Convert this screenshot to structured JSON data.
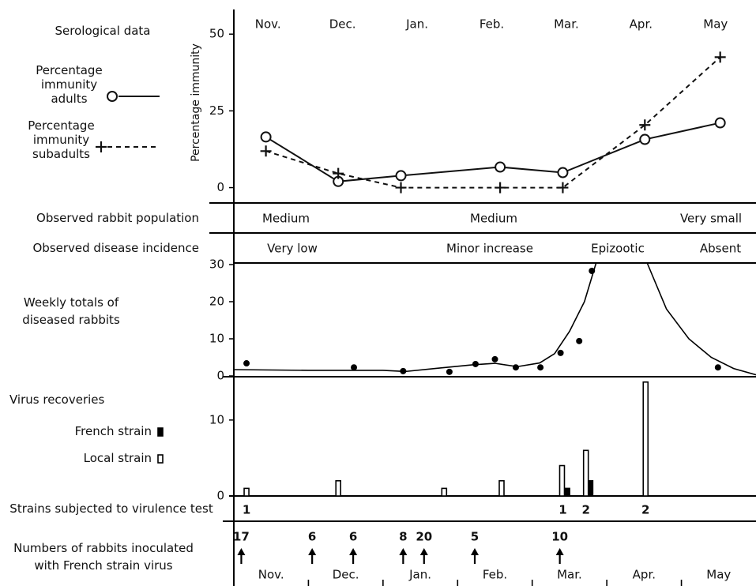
{
  "chart_data": [
    {
      "type": "line",
      "title": "Serological data",
      "ylabel": "Percentage immunity",
      "categories": [
        "Nov.",
        "Dec.",
        "Jan.",
        "Feb.",
        "Mar.",
        "Apr.",
        "May"
      ],
      "x": [
        0.43,
        1.4,
        2.24,
        3.57,
        4.41,
        5.51,
        6.52
      ],
      "xlim": [
        0,
        7
      ],
      "ylim": [
        -5,
        57
      ],
      "yticks": [
        0,
        25,
        50
      ],
      "series": [
        {
          "name": "Percentage immunity adults",
          "marker": "circle",
          "dash": "solid",
          "color": "#111111",
          "values": [
            16.5,
            2,
            3.9,
            6.7,
            4.9,
            15.7,
            21.1
          ]
        },
        {
          "name": "Percentage immunity subadults",
          "marker": "plus",
          "dash": "dashed",
          "color": "#111111",
          "values": [
            11.9,
            4.6,
            0,
            0,
            0,
            20.4,
            42.5
          ]
        }
      ]
    },
    {
      "type": "text_row",
      "title": "Observed rabbit population",
      "labels": [
        "Medium",
        "Medium",
        "Very small"
      ]
    },
    {
      "type": "text_row",
      "title": "Observed disease incidence",
      "labels": [
        "Very low",
        "Minor increase",
        "Epizootic",
        "Absent"
      ]
    },
    {
      "type": "scatter",
      "title": "Weekly totals of diseased rabbits",
      "xlim": [
        0,
        7
      ],
      "x": [
        0.17,
        1.61,
        2.27,
        2.89,
        3.24,
        3.5,
        3.78,
        4.11,
        4.38,
        4.63,
        4.8,
        6.49
      ],
      "values": [
        3.4,
        2.3,
        1.3,
        1.1,
        3.2,
        4.5,
        2.3,
        2.3,
        6.2,
        9.4,
        28.3,
        2.3
      ],
      "curve": {
        "x": [
          0,
          1,
          2,
          2.3,
          2.7,
          3.2,
          3.5,
          3.8,
          4.1,
          4.3,
          4.5,
          4.7,
          4.85,
          4.9,
          5.5,
          5.55,
          5.8,
          6.1,
          6.4,
          6.7,
          7
        ],
        "values": [
          1.7,
          1.5,
          1.5,
          1.2,
          2,
          3,
          3.4,
          2.5,
          3.5,
          6,
          12,
          20,
          30,
          33,
          33,
          30,
          18,
          10,
          5,
          2,
          0.3
        ]
      },
      "ylim": [
        0,
        30
      ],
      "yticks": [
        0,
        10,
        20,
        30
      ]
    },
    {
      "type": "bar",
      "title": "Virus recoveries",
      "xlim": [
        0,
        7
      ],
      "ylim": [
        0,
        15.6
      ],
      "yticks": [
        0,
        10
      ],
      "series": [
        {
          "name": "French strain",
          "fill": "solid",
          "x": [
            4.47,
            4.78
          ],
          "values": [
            1,
            2
          ]
        },
        {
          "name": "Local strain",
          "fill": "open",
          "x": [
            0.17,
            1.4,
            2.82,
            3.59,
            4.4,
            4.72,
            5.52
          ],
          "values": [
            1,
            2,
            1,
            2,
            4,
            6,
            15
          ]
        }
      ]
    },
    {
      "type": "count_row",
      "title": "Strains subjected to virulence test",
      "xlim": [
        0,
        7
      ],
      "x": [
        0.17,
        4.41,
        4.72,
        5.52
      ],
      "values": [
        1,
        1,
        2,
        2
      ]
    },
    {
      "type": "arrow_row",
      "title": "Numbers of rabbits inoculated with French strain virus",
      "xlim": [
        0,
        7
      ],
      "x": [
        0.1,
        1.05,
        1.6,
        2.27,
        2.55,
        3.23,
        4.37
      ],
      "values": [
        17,
        6,
        6,
        8,
        20,
        5,
        10
      ],
      "categories": [
        "Nov.",
        "Dec.",
        "Jan.",
        "Feb.",
        "Mar.",
        "Apr.",
        "May"
      ]
    }
  ]
}
